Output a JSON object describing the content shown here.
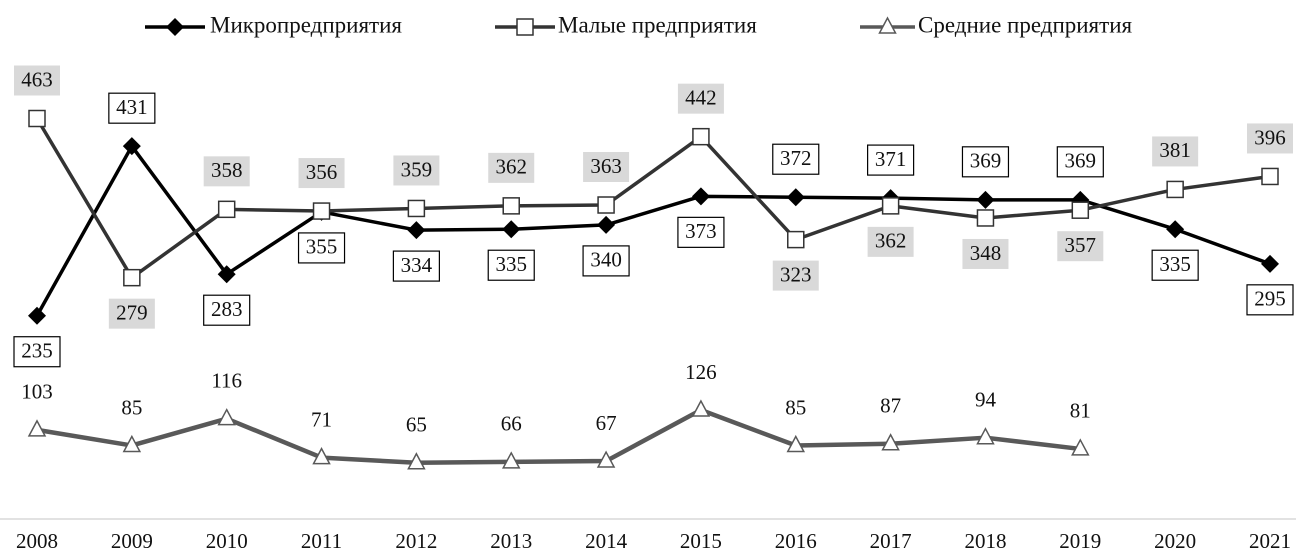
{
  "chart_data": {
    "type": "line",
    "categories": [
      "2008",
      "2009",
      "2010",
      "2011",
      "2012",
      "2013",
      "2014",
      "2015",
      "2016",
      "2017",
      "2018",
      "2019",
      "2020",
      "2021"
    ],
    "series": [
      {
        "name": "Микропредприятия",
        "color": "#000000",
        "values": [
          235,
          431,
          283,
          355,
          334,
          335,
          340,
          373,
          372,
          371,
          369,
          369,
          335,
          295
        ]
      },
      {
        "name": "Малые предприятия",
        "color": "#333333",
        "values": [
          463,
          279,
          358,
          356,
          359,
          362,
          363,
          442,
          323,
          362,
          348,
          357,
          381,
          396
        ]
      },
      {
        "name": "Средние предприятия",
        "color": "#595959",
        "values": [
          103,
          85,
          116,
          71,
          65,
          66,
          67,
          126,
          85,
          87,
          94,
          81,
          null,
          null
        ]
      }
    ],
    "ylim": [
      0,
      600
    ],
    "legend": "top"
  }
}
